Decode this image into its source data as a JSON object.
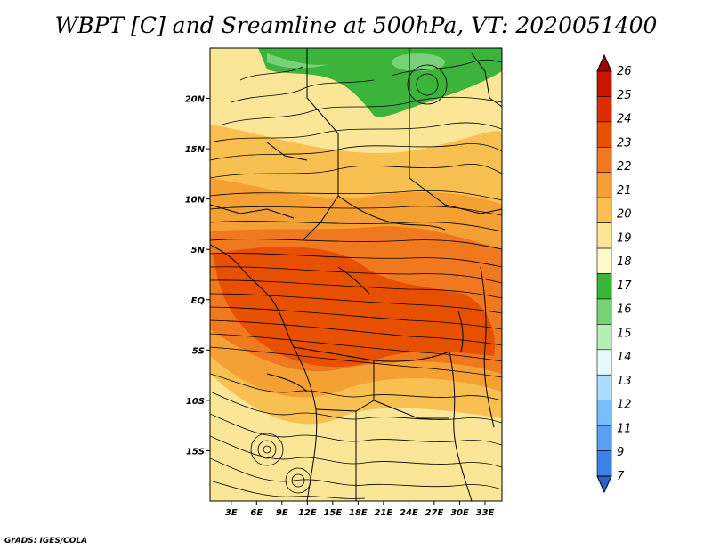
{
  "title": "WBPT [C] and Sreamline at 500hPa, VT: 2020051400",
  "credit": "GrADS: IGES/COLA",
  "map": {
    "lat_labels": [
      "20N",
      "15N",
      "10N",
      "5N",
      "EQ",
      "5S",
      "10S",
      "15S"
    ],
    "lat_values": [
      20,
      15,
      10,
      5,
      0,
      -5,
      -10,
      -15
    ],
    "lon_labels": [
      "3E",
      "6E",
      "9E",
      "12E",
      "15E",
      "18E",
      "21E",
      "24E",
      "27E",
      "30E",
      "33E"
    ],
    "lon_values": [
      3,
      6,
      9,
      12,
      15,
      18,
      21,
      24,
      27,
      30,
      33
    ],
    "lon_range": [
      0.5,
      35
    ],
    "lat_range": [
      -20,
      25
    ]
  },
  "colorbar": {
    "levels": [
      "26",
      "25",
      "24",
      "23",
      "22",
      "21",
      "20",
      "19",
      "18",
      "17",
      "16",
      "15",
      "14",
      "13",
      "12",
      "11",
      "9",
      "7"
    ],
    "colors": [
      "#a50000",
      "#c81400",
      "#dc2d00",
      "#e65000",
      "#f0781e",
      "#f5a032",
      "#f8c050",
      "#fae696",
      "#fffac8",
      "#3cb43c",
      "#78d278",
      "#b4f0b4",
      "#e6fafa",
      "#aadcff",
      "#78befa",
      "#5aa0f0",
      "#3c82e6",
      "#2864d2"
    ]
  }
}
